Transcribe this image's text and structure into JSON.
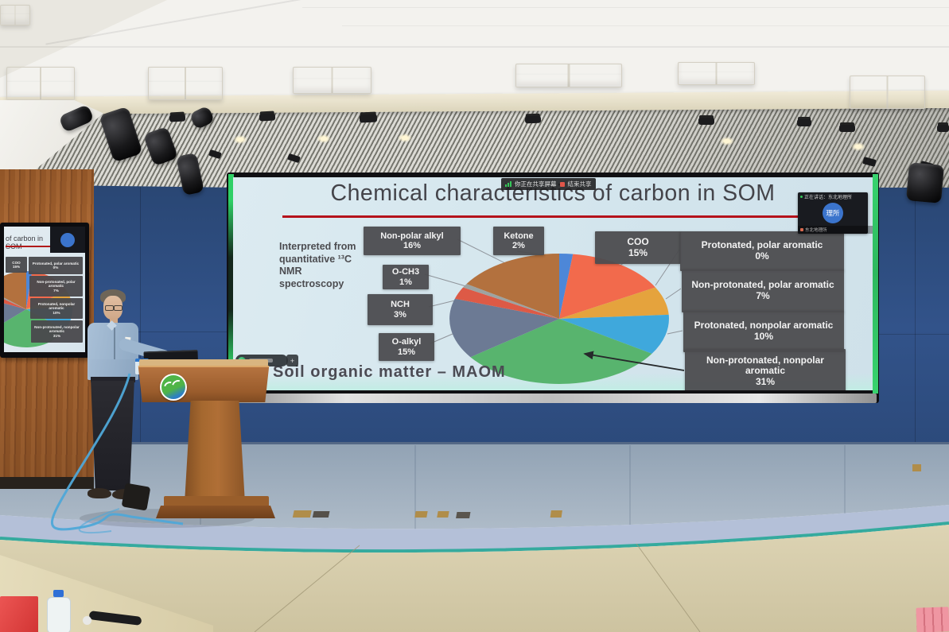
{
  "chart_data": {
    "type": "pie",
    "title": "Chemical characteristics of carbon in SOM",
    "source_note": "Interpreted from quantitative ¹³C NMR spectroscopy",
    "annotation": "Soil organic matter – MAOM",
    "unit": "percent",
    "total": 100,
    "legend_position": "callout-boxes",
    "slices": [
      {
        "label": "Ketone",
        "value": 2,
        "pct": "2%",
        "color": "#4d87d8"
      },
      {
        "label": "COO",
        "value": 15,
        "pct": "15%",
        "color": "#f26a4c"
      },
      {
        "label": "Protonated, polar aromatic",
        "value": 0,
        "pct": "0%",
        "color": "#c8c8c8"
      },
      {
        "label": "Non-protonated, polar aromatic",
        "value": 7,
        "pct": "7%",
        "color": "#e5a33d"
      },
      {
        "label": "Protonated, nonpolar aromatic",
        "value": 10,
        "pct": "10%",
        "color": "#3fa8dc"
      },
      {
        "label": "Non-protonated, nonpolar aromatic",
        "value": 31,
        "pct": "31%",
        "color": "#58b46e"
      },
      {
        "label": "O-alkyl",
        "value": 15,
        "pct": "15%",
        "color": "#6c7a94"
      },
      {
        "label": "NCH",
        "value": 3,
        "pct": "3%",
        "color": "#dd5a46"
      },
      {
        "label": "O-CH3",
        "value": 1,
        "pct": "1%",
        "color": "#9da3a1"
      },
      {
        "label": "Non-polar alkyl",
        "value": 16,
        "pct": "16%",
        "color": "#b3713e"
      }
    ]
  },
  "overlays": {
    "share_bar": {
      "sharing_label": "你正在共享屏幕",
      "stop_label": "结束共享"
    },
    "vc_panel": {
      "header": "正在讲话：东北地理所",
      "avatar": "理所",
      "footer": "东北地理所"
    },
    "toolbar": {
      "expand_glyph": "+"
    }
  },
  "monitor": {
    "title_fragment": "of carbon in SOM"
  }
}
